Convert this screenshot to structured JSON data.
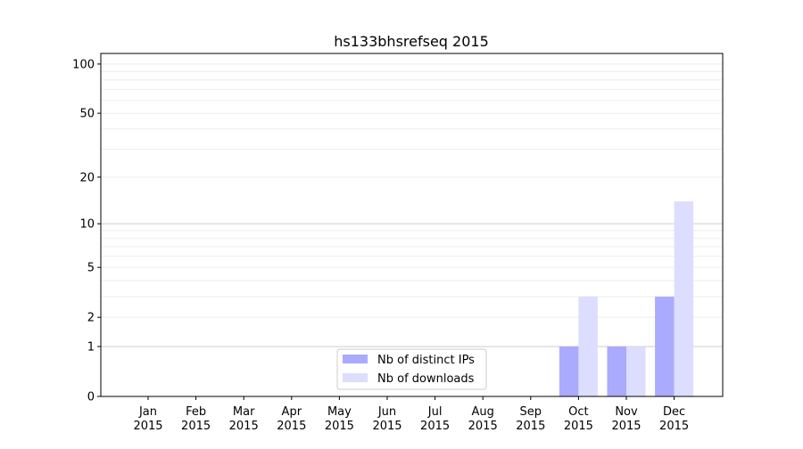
{
  "chart_data": {
    "type": "bar",
    "title": "hs133bhsrefseq 2015",
    "xlabel": "",
    "ylabel": "",
    "y_scale": "log(1+y)",
    "ylim": [
      0,
      116
    ],
    "y_ticks": [
      0,
      1,
      2,
      5,
      10,
      20,
      50,
      100
    ],
    "grid": true,
    "legend_position": "lower-center",
    "categories": [
      "Jan\n2015",
      "Feb\n2015",
      "Mar\n2015",
      "Apr\n2015",
      "May\n2015",
      "Jun\n2015",
      "Jul\n2015",
      "Aug\n2015",
      "Sep\n2015",
      "Oct\n2015",
      "Nov\n2015",
      "Dec\n2015"
    ],
    "series": [
      {
        "name": "Nb of distinct IPs",
        "color": "#aaaaff",
        "values": [
          0,
          0,
          0,
          0,
          0,
          0,
          0,
          0,
          0,
          1,
          1,
          3
        ]
      },
      {
        "name": "Nb of downloads",
        "color": "#ddddff",
        "values": [
          0,
          0,
          0,
          0,
          0,
          0,
          0,
          0,
          0,
          3,
          1,
          14
        ]
      }
    ]
  }
}
